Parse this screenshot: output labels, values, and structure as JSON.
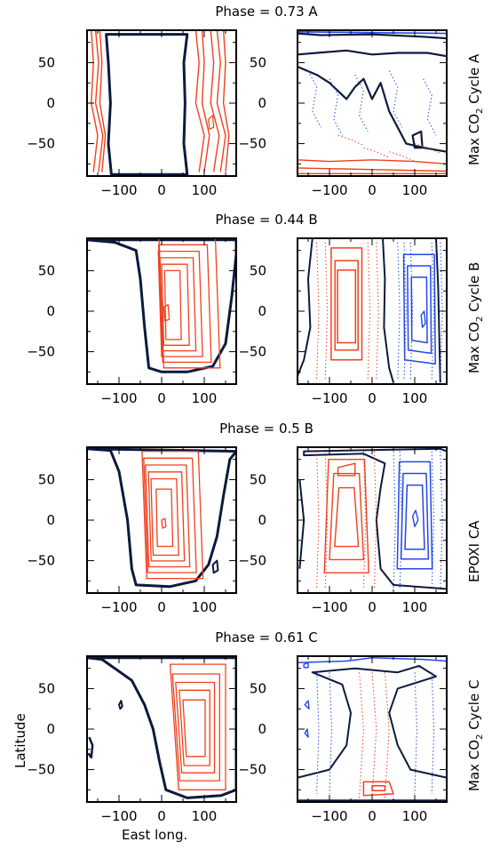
{
  "figure": {
    "xlabel": "East long.",
    "ylabel": "Latitude",
    "colors": {
      "axis": "#000000",
      "terminator": "#0c1a3d",
      "positive": "#f0401c",
      "negative": "#2448e6"
    }
  },
  "chart_data": [
    {
      "type": "contour",
      "row_title": "Phase = 0.73   A",
      "row_label": {
        "prefix": "Max CO",
        "sub": "2",
        "suffix": " Cycle A"
      },
      "panels": [
        {
          "side": "left",
          "xlim": [
            -175,
            175
          ],
          "ylim": [
            -90,
            90
          ],
          "xticks": [
            -100,
            0,
            100
          ],
          "yticks": [
            -50,
            0,
            50
          ],
          "features": [
            "sunlit region bounded by terminator",
            "solid red contours along west and east limbs"
          ]
        },
        {
          "side": "right",
          "xlim": [
            -175,
            175
          ],
          "ylim": [
            -90,
            90
          ],
          "xticks": [
            -100,
            0,
            100
          ],
          "yticks": [
            -50,
            0,
            50
          ],
          "features": [
            "black zero contour",
            "dotted red and blue contours",
            "solid red bands near -90 latitude",
            "solid blue near 90 latitude"
          ]
        }
      ]
    },
    {
      "type": "contour",
      "row_title": "Phase = 0.44   B",
      "row_label": {
        "prefix": "Max CO",
        "sub": "2",
        "suffix": " Cycle B"
      },
      "panels": [
        {
          "side": "left",
          "xlim": [
            -175,
            175
          ],
          "ylim": [
            -90,
            90
          ],
          "xticks": [
            -100,
            0,
            100
          ],
          "yticks": [
            -50,
            0,
            50
          ],
          "features": [
            "terminator near -30 longitude",
            "nested red contours centered near 40 longitude"
          ]
        },
        {
          "side": "right",
          "xlim": [
            -175,
            175
          ],
          "ylim": [
            -90,
            90
          ],
          "xticks": [
            -100,
            0,
            100
          ],
          "yticks": [
            -50,
            0,
            50
          ],
          "features": [
            "solid red cell near -60 longitude",
            "solid blue cell near 110 longitude",
            "black zero contours"
          ]
        }
      ]
    },
    {
      "type": "contour",
      "row_title": "Phase = 0.5   B",
      "row_label": {
        "prefix": "EPOXI CA",
        "sub": "",
        "suffix": ""
      },
      "panels": [
        {
          "side": "left",
          "xlim": [
            -175,
            175
          ],
          "ylim": [
            -90,
            90
          ],
          "xticks": [
            -100,
            0,
            100
          ],
          "yticks": [
            -50,
            0,
            50
          ],
          "features": [
            "terminator near -50 longitude",
            "nested red contours centered near 20 longitude"
          ]
        },
        {
          "side": "right",
          "xlim": [
            -175,
            175
          ],
          "ylim": [
            -90,
            90
          ],
          "xticks": [
            -100,
            0,
            100
          ],
          "yticks": [
            -50,
            0,
            50
          ],
          "features": [
            "solid red cells near -60 longitude",
            "solid blue cell near 100 longitude",
            "black zero contours"
          ]
        }
      ]
    },
    {
      "type": "contour",
      "row_title": "Phase = 0.61   C",
      "row_label": {
        "prefix": "Max CO",
        "sub": "2",
        "suffix": " Cycle C"
      },
      "panels": [
        {
          "side": "left",
          "xlim": [
            -175,
            175
          ],
          "ylim": [
            -90,
            90
          ],
          "xticks": [
            -100,
            0,
            100
          ],
          "yticks": [
            -50,
            0,
            50
          ],
          "features": [
            "terminator near 0 longitude",
            "nested red contours centered near 80 longitude"
          ]
        },
        {
          "side": "right",
          "xlim": [
            -175,
            175
          ],
          "ylim": [
            -90,
            90
          ],
          "xticks": [
            -100,
            0,
            100
          ],
          "yticks": [
            -50,
            0,
            50
          ],
          "features": [
            "black contour bounding central region",
            "dotted red and blue contours",
            "solid red cell near -75 latitude"
          ]
        }
      ]
    }
  ]
}
